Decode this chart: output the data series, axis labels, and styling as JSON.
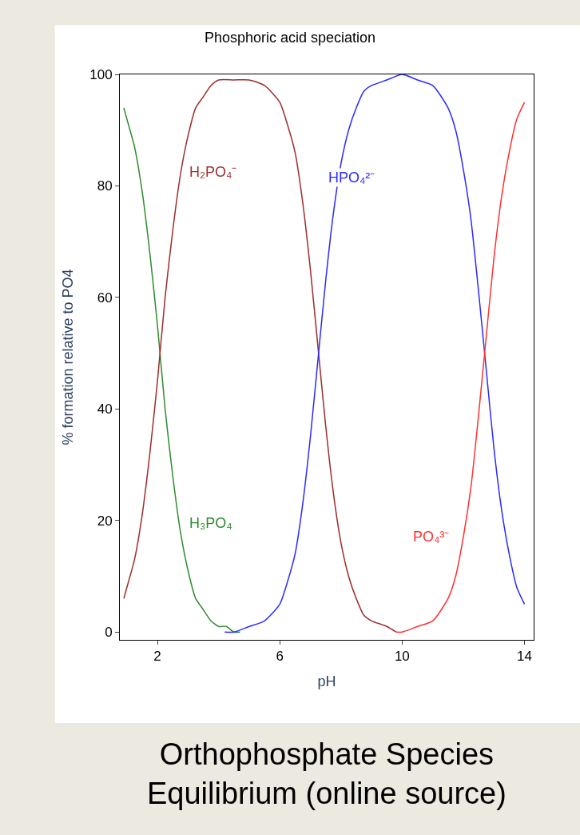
{
  "chart_data": {
    "type": "line",
    "title": "Phosphoric acid speciation",
    "xlabel": "pH",
    "ylabel": "% formation relative to PO4",
    "xlim": [
      0.77,
      14.3
    ],
    "ylim": [
      -1.4,
      100
    ],
    "xticks": [
      2,
      6,
      10,
      14
    ],
    "yticks": [
      0,
      20,
      40,
      60,
      80,
      100
    ],
    "legend": false,
    "marker": "none",
    "line_style": "solid",
    "series": [
      {
        "name": "H₃PO₄",
        "color": "#2e8b2e",
        "x": [
          0.9,
          1.0,
          1.25,
          1.5,
          1.75,
          2.0,
          2.25,
          2.5,
          2.75,
          3.0,
          3.25,
          3.5,
          3.75,
          4.0,
          4.25,
          4.5,
          4.7
        ],
        "values": [
          94,
          92,
          87,
          79,
          68,
          55,
          40,
          28,
          18,
          11,
          6,
          4,
          2,
          1,
          1,
          0,
          0
        ]
      },
      {
        "name": "H₂PO₄⁻",
        "color": "#9b2d2d",
        "x": [
          0.9,
          1.0,
          1.25,
          1.5,
          1.75,
          2.0,
          2.25,
          2.5,
          2.75,
          3.0,
          3.25,
          3.5,
          3.75,
          4.0,
          4.5,
          5.0,
          5.5,
          6.0,
          6.25,
          6.5,
          6.75,
          7.0,
          7.25,
          7.5,
          7.75,
          8.0,
          8.25,
          8.5,
          8.75,
          9.0,
          9.5,
          9.8
        ],
        "values": [
          6,
          8,
          13,
          21,
          32,
          45,
          60,
          72,
          82,
          89,
          94,
          96,
          98,
          99,
          99,
          99,
          98,
          95,
          91,
          86,
          77,
          65,
          51,
          37,
          25,
          16,
          10,
          6,
          3,
          2,
          1,
          0
        ]
      },
      {
        "name": "HPO₄²⁻",
        "color": "#2a2aff",
        "x": [
          4.2,
          4.5,
          5.0,
          5.5,
          6.0,
          6.25,
          6.5,
          6.75,
          7.0,
          7.25,
          7.5,
          7.75,
          8.0,
          8.25,
          8.5,
          8.75,
          9.0,
          9.5,
          10.0,
          10.5,
          11.0,
          11.5,
          11.75,
          12.0,
          12.25,
          12.5,
          12.75,
          13.0,
          13.25,
          13.5,
          13.75,
          14.0
        ],
        "values": [
          0,
          0,
          1,
          2,
          5,
          9,
          14,
          23,
          35,
          49,
          63,
          75,
          84,
          90,
          94,
          97,
          98,
          99,
          100,
          99,
          98,
          94,
          90,
          83,
          74,
          61,
          47,
          33,
          22,
          14,
          8,
          5
        ]
      },
      {
        "name": "PO₄³⁻",
        "color": "#ff3030",
        "x": [
          9.8,
          10.0,
          10.5,
          11.0,
          11.5,
          11.75,
          12.0,
          12.25,
          12.5,
          12.75,
          13.0,
          13.25,
          13.5,
          13.75,
          14.0
        ],
        "values": [
          0,
          0,
          1,
          2,
          6,
          10,
          17,
          26,
          39,
          53,
          67,
          78,
          86,
          92,
          95
        ]
      }
    ],
    "annotations": [
      "Orthophosphate Species Equilibrium (online source)"
    ]
  }
}
